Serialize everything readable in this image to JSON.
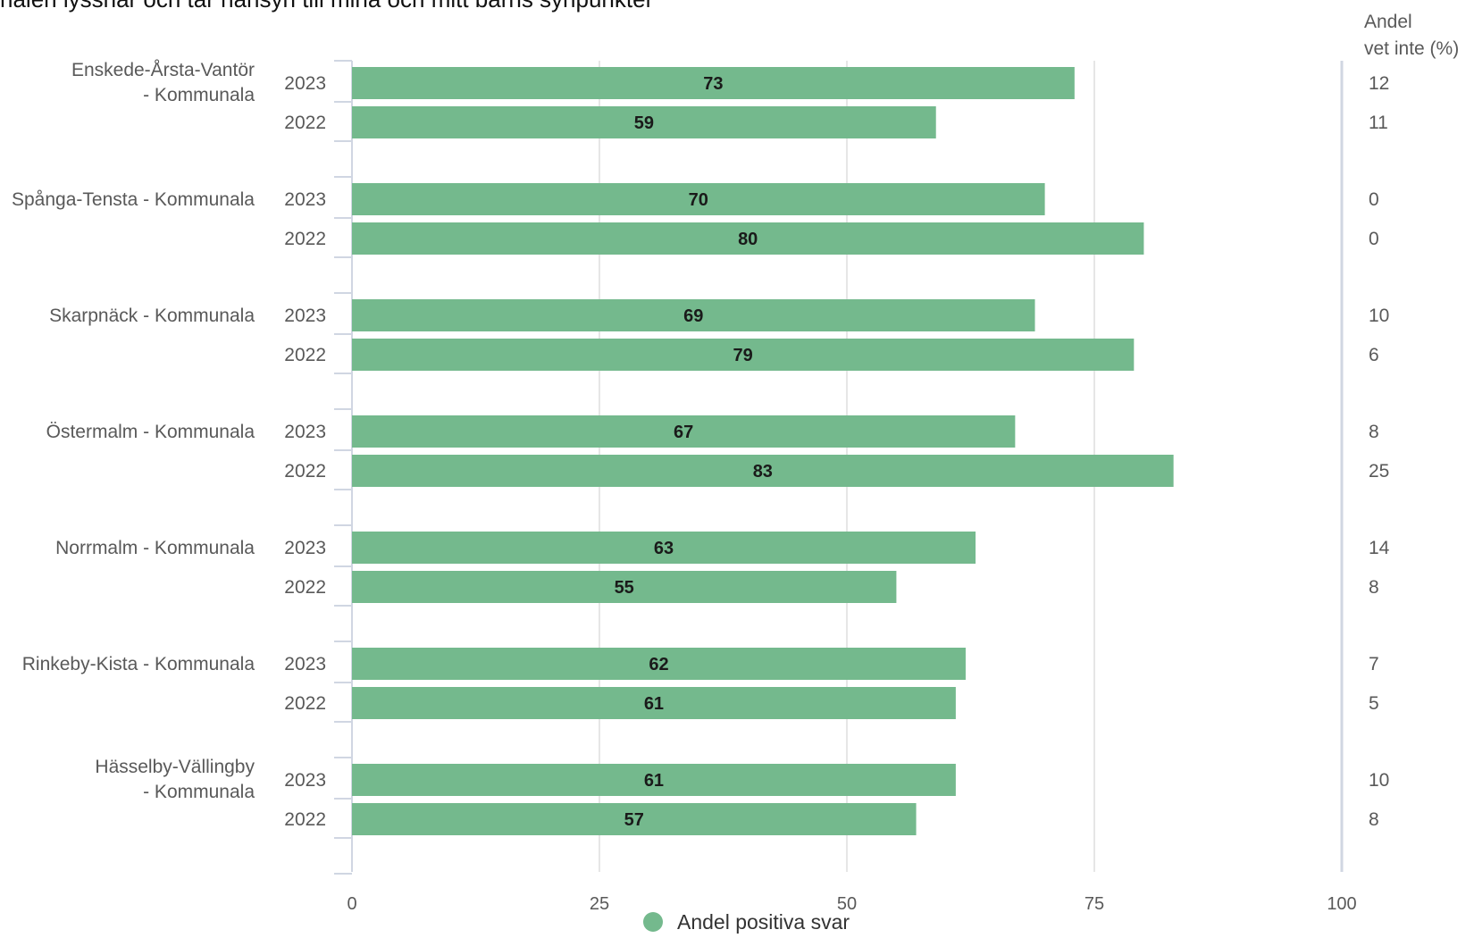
{
  "chart_data": {
    "type": "bar",
    "orientation": "horizontal",
    "title": "nalen lyssnar och tar hänsyn till mina och mitt barns synpunkter",
    "side_header": [
      "Andel",
      "vet inte (%)"
    ],
    "groups": [
      {
        "label": [
          "Enskede-Årsta-Vantör",
          "- Kommunala"
        ],
        "rows": [
          {
            "year": "2023",
            "value": 73,
            "vet_inte": 12
          },
          {
            "year": "2022",
            "value": 59,
            "vet_inte": 11
          }
        ]
      },
      {
        "label": [
          "Spånga-Tensta - Kommunala"
        ],
        "rows": [
          {
            "year": "2023",
            "value": 70,
            "vet_inte": 0
          },
          {
            "year": "2022",
            "value": 80,
            "vet_inte": 0
          }
        ]
      },
      {
        "label": [
          "Skarpnäck - Kommunala"
        ],
        "rows": [
          {
            "year": "2023",
            "value": 69,
            "vet_inte": 10
          },
          {
            "year": "2022",
            "value": 79,
            "vet_inte": 6
          }
        ]
      },
      {
        "label": [
          "Östermalm - Kommunala"
        ],
        "rows": [
          {
            "year": "2023",
            "value": 67,
            "vet_inte": 8
          },
          {
            "year": "2022",
            "value": 83,
            "vet_inte": 25
          }
        ]
      },
      {
        "label": [
          "Norrmalm - Kommunala"
        ],
        "rows": [
          {
            "year": "2023",
            "value": 63,
            "vet_inte": 14
          },
          {
            "year": "2022",
            "value": 55,
            "vet_inte": 8
          }
        ]
      },
      {
        "label": [
          "Rinkeby-Kista - Kommunala"
        ],
        "rows": [
          {
            "year": "2023",
            "value": 62,
            "vet_inte": 7
          },
          {
            "year": "2022",
            "value": 61,
            "vet_inte": 5
          }
        ]
      },
      {
        "label": [
          "Hässelby-Vällingby",
          "- Kommunala"
        ],
        "rows": [
          {
            "year": "2023",
            "value": 61,
            "vet_inte": 10
          },
          {
            "year": "2022",
            "value": 57,
            "vet_inte": 8
          }
        ]
      }
    ],
    "xlim": [
      0,
      100
    ],
    "xticks": [
      0,
      25,
      50,
      75,
      100
    ],
    "grid": true,
    "legend": {
      "position": "bottom",
      "entries": [
        {
          "name": "Andel positiva svar",
          "color": "#74b98d"
        }
      ]
    },
    "colors": {
      "bar": "#74b98d",
      "grid": "#e6e6e6",
      "axis": "#d0d6e2"
    }
  }
}
